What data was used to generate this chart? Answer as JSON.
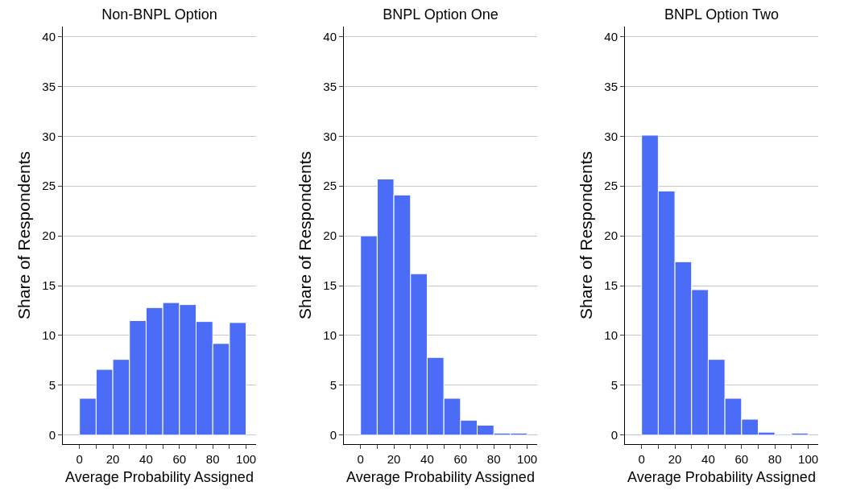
{
  "chart_data": [
    {
      "type": "histogram",
      "title": "Non-BNPL Option",
      "xlabel": "Average Probability Assigned",
      "ylabel": "Share of Respondents",
      "bins": [
        0,
        10,
        20,
        30,
        40,
        50,
        60,
        70,
        80,
        90,
        100
      ],
      "values": [
        3.7,
        6.6,
        7.6,
        11.5,
        12.8,
        13.3,
        13.1,
        11.4,
        9.2,
        11.3
      ],
      "color": "#4a6cf7",
      "xlim": [
        -10,
        106
      ],
      "xticks": [
        0,
        {
          "value": 10,
          "label": null
        },
        20,
        {
          "value": 30,
          "label": null
        },
        40,
        {
          "value": 50,
          "label": null
        },
        60,
        {
          "value": 70,
          "label": null
        },
        80,
        {
          "value": 90,
          "label": null
        },
        100
      ],
      "ylim": [
        -0.9,
        41
      ],
      "yticks": [
        0,
        5,
        10,
        15,
        20,
        25,
        30,
        35,
        40
      ],
      "grid": "y"
    },
    {
      "type": "histogram",
      "title": "BNPL Option One",
      "xlabel": "Average Probability Assigned",
      "ylabel": "Share of Respondents",
      "bins": [
        0,
        10,
        20,
        30,
        40,
        50,
        60,
        70,
        80,
        90,
        100
      ],
      "values": [
        20.0,
        25.7,
        24.1,
        16.2,
        7.8,
        3.7,
        1.5,
        1.0,
        0.2,
        0.2
      ],
      "color": "#4a6cf7",
      "xlim": [
        -10,
        106
      ],
      "xticks": [
        0,
        {
          "value": 10,
          "label": null
        },
        20,
        {
          "value": 30,
          "label": null
        },
        40,
        {
          "value": 50,
          "label": null
        },
        60,
        {
          "value": 70,
          "label": null
        },
        80,
        {
          "value": 90,
          "label": null
        },
        100
      ],
      "ylim": [
        -0.9,
        41
      ],
      "yticks": [
        0,
        5,
        10,
        15,
        20,
        25,
        30,
        35,
        40
      ],
      "grid": "y"
    },
    {
      "type": "histogram",
      "title": "BNPL Option Two",
      "xlabel": "Average Probability Assigned",
      "ylabel": "Share of Respondents",
      "bins": [
        0,
        10,
        20,
        30,
        40,
        50,
        60,
        70,
        80,
        90,
        100
      ],
      "values": [
        30.1,
        24.5,
        17.4,
        14.6,
        7.6,
        3.7,
        1.6,
        0.3,
        0.1,
        0.2
      ],
      "color": "#4a6cf7",
      "xlim": [
        -10,
        106
      ],
      "xticks": [
        0,
        {
          "value": 10,
          "label": null
        },
        20,
        {
          "value": 30,
          "label": null
        },
        40,
        {
          "value": 50,
          "label": null
        },
        60,
        {
          "value": 70,
          "label": null
        },
        80,
        {
          "value": 90,
          "label": null
        },
        100
      ],
      "ylim": [
        -0.9,
        41
      ],
      "yticks": [
        0,
        5,
        10,
        15,
        20,
        25,
        30,
        35,
        40
      ],
      "grid": "y"
    }
  ]
}
